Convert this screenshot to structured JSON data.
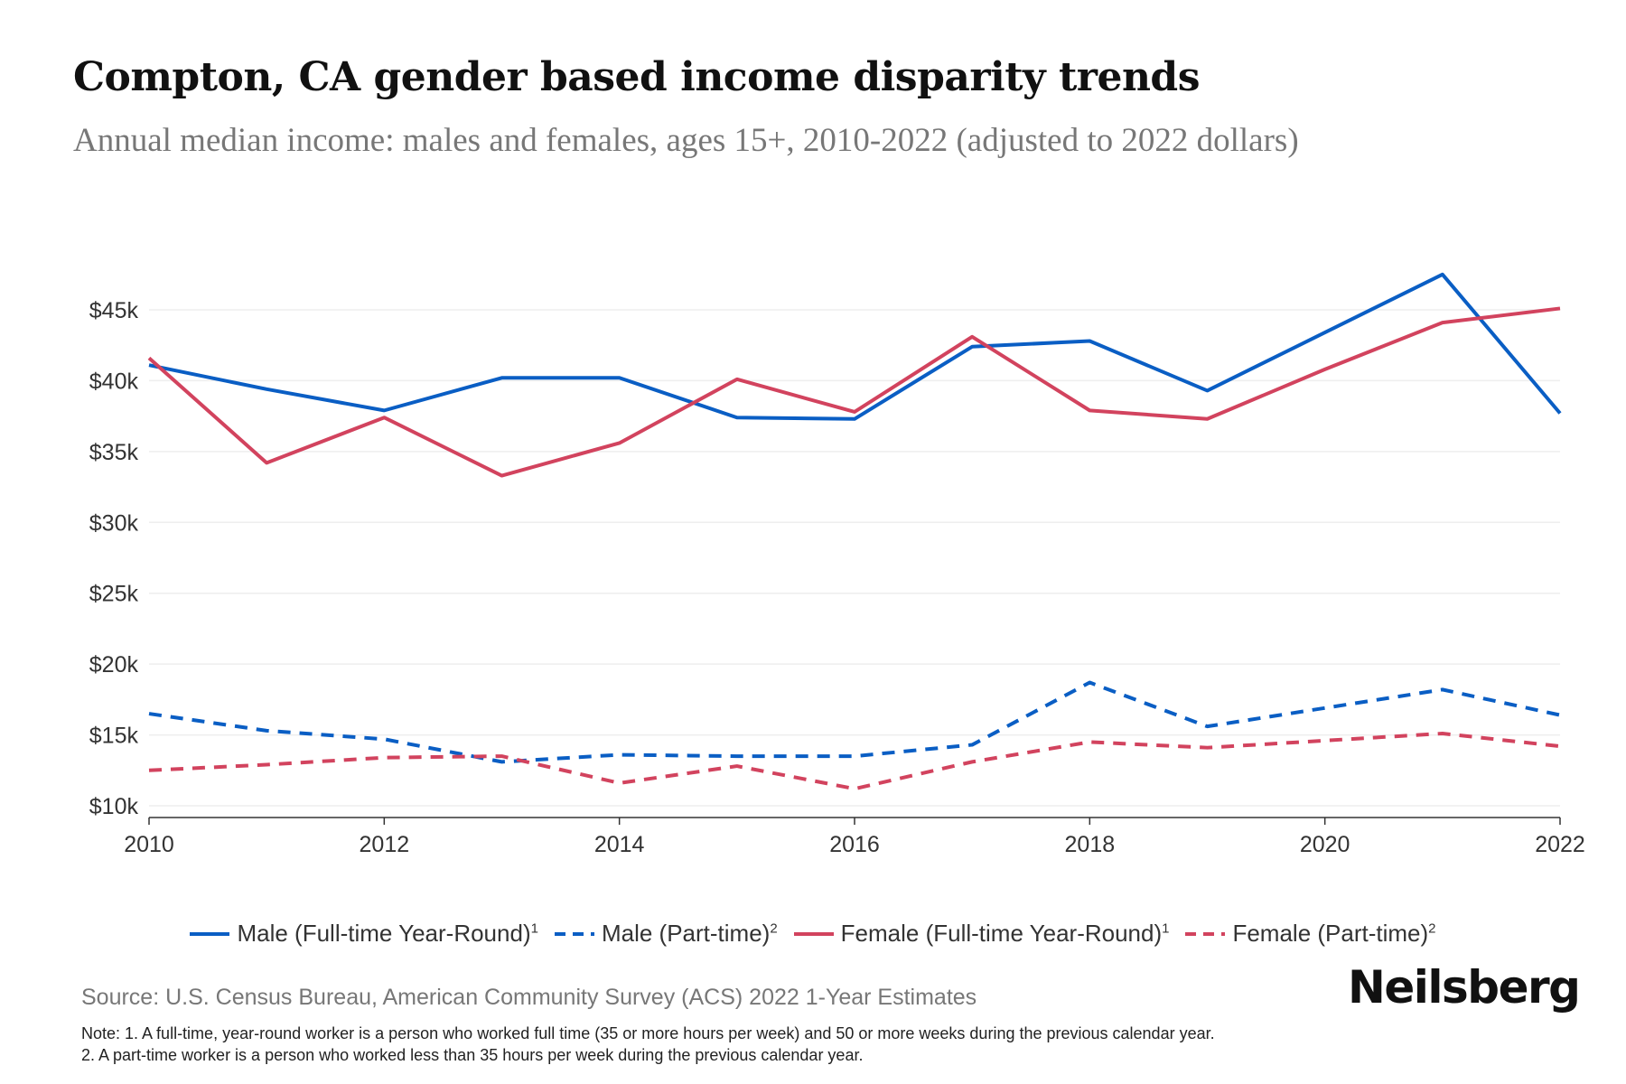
{
  "title": "Compton, CA gender based income disparity trends",
  "subtitle": "Annual median income: males and females, ages 15+, 2010-2022 (adjusted to 2022 dollars)",
  "chart_data": {
    "type": "line",
    "x": [
      2010,
      2011,
      2012,
      2013,
      2014,
      2015,
      2016,
      2017,
      2018,
      2019,
      2020,
      2021,
      2022
    ],
    "xlim": [
      2010,
      2022
    ],
    "ylim": [
      10000,
      47500
    ],
    "x_ticks": [
      "2010",
      "2012",
      "2014",
      "2016",
      "2018",
      "2020",
      "2022"
    ],
    "y_ticks": [
      "$10k",
      "$15k",
      "$20k",
      "$25k",
      "$30k",
      "$35k",
      "$40k",
      "$45k"
    ],
    "grid": "horizontal",
    "legend_position": "bottom",
    "series": [
      {
        "name": "Male (Full-time Year-Round)",
        "sup": "1",
        "color": "#0a5ec4",
        "dash": false,
        "values": [
          41100,
          39400,
          37900,
          40200,
          40200,
          37400,
          37300,
          42400,
          42800,
          39300,
          43400,
          47500,
          37700
        ]
      },
      {
        "name": "Male (Part-time)",
        "sup": "2",
        "color": "#0a5ec4",
        "dash": true,
        "values": [
          16500,
          15300,
          14700,
          13100,
          13600,
          13500,
          13500,
          14300,
          18700,
          15600,
          16900,
          18200,
          16400
        ]
      },
      {
        "name": "Female (Full-time Year-Round)",
        "sup": "1",
        "color": "#d2435e",
        "dash": false,
        "values": [
          41600,
          34200,
          37400,
          33300,
          35600,
          40100,
          37800,
          43100,
          37900,
          37300,
          40800,
          44100,
          45100
        ]
      },
      {
        "name": "Female (Part-time)",
        "sup": "2",
        "color": "#d2435e",
        "dash": true,
        "values": [
          12500,
          12900,
          13400,
          13500,
          11600,
          12800,
          11200,
          13100,
          14500,
          14100,
          14600,
          15100,
          14200
        ]
      }
    ]
  },
  "source": "Source: U.S. Census Bureau, American Community Survey (ACS) 2022 1-Year Estimates",
  "notes": [
    "Note: 1. A full-time, year-round worker is a person who worked full time (35 or more hours per week) and 50 or more weeks during the previous calendar year.",
    "2. A part-time worker is a person who worked less than 35 hours per week during the previous calendar year."
  ],
  "logo": "Neilsberg"
}
